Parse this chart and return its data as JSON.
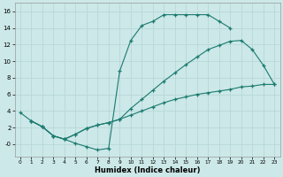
{
  "xlabel": "Humidex (Indice chaleur)",
  "bg_color": "#cce8e8",
  "grid_color": "#b8d8d8",
  "line_color": "#1a7a6e",
  "xlim": [
    -0.5,
    23.5
  ],
  "ylim": [
    -1.5,
    17.0
  ],
  "xticks": [
    0,
    1,
    2,
    3,
    4,
    5,
    6,
    7,
    8,
    9,
    10,
    11,
    12,
    13,
    14,
    15,
    16,
    17,
    18,
    19,
    20,
    21,
    22,
    23
  ],
  "yticks": [
    0,
    2,
    4,
    6,
    8,
    10,
    12,
    14,
    16
  ],
  "ytick_labels": [
    "-0",
    "2",
    "4",
    "6",
    "8",
    "10",
    "12",
    "14",
    "16"
  ],
  "curve1_x": [
    0,
    1,
    2,
    3,
    4,
    5,
    6,
    7,
    8,
    9,
    10,
    11,
    12,
    13,
    14,
    15,
    16,
    17,
    18,
    19
  ],
  "curve1_y": [
    3.8,
    2.8,
    2.1,
    1.0,
    0.6,
    0.1,
    -0.3,
    -0.7,
    -0.5,
    8.8,
    12.5,
    14.3,
    14.8,
    15.6,
    15.6,
    15.6,
    15.6,
    15.6,
    14.8,
    14.0
  ],
  "curve2_x": [
    1,
    2,
    3,
    4,
    5,
    6,
    7,
    8,
    9,
    10,
    11,
    12,
    13,
    14,
    15,
    16,
    17,
    18,
    19,
    20,
    21,
    22,
    23
  ],
  "curve2_y": [
    2.8,
    2.1,
    1.0,
    0.6,
    1.2,
    1.9,
    2.3,
    2.6,
    3.0,
    3.5,
    4.0,
    4.5,
    5.0,
    5.4,
    5.7,
    6.0,
    6.2,
    6.4,
    6.6,
    6.9,
    7.0,
    7.2,
    7.2
  ],
  "curve3_x": [
    1,
    2,
    3,
    4,
    5,
    6,
    7,
    8,
    9,
    10,
    11,
    12,
    13,
    14,
    15,
    16,
    17,
    18,
    19,
    20,
    21,
    22,
    23
  ],
  "curve3_y": [
    2.8,
    2.1,
    1.0,
    0.6,
    1.2,
    1.9,
    2.3,
    2.6,
    3.0,
    4.3,
    5.4,
    6.5,
    7.6,
    8.6,
    9.6,
    10.5,
    11.4,
    11.9,
    12.4,
    12.5,
    11.4,
    9.5,
    7.2
  ]
}
